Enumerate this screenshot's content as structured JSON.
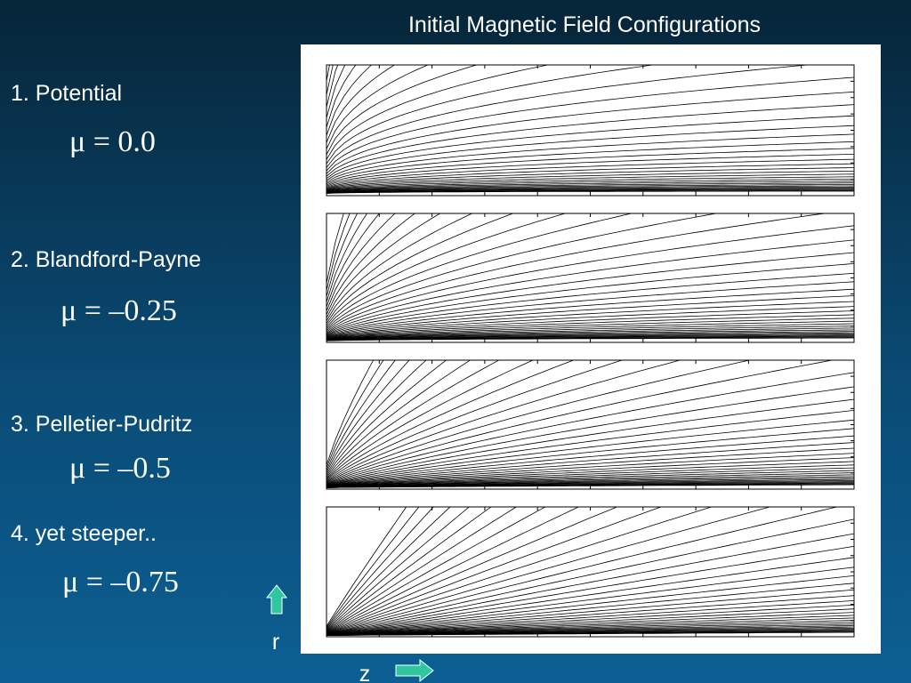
{
  "title": "Initial Magnetic Field Configurations",
  "items": [
    {
      "label": "1. Potential",
      "equation": "μ = 0.0"
    },
    {
      "label": "2. Blandford-Payne",
      "equation": "μ = –0.25"
    },
    {
      "label": "3. Pelletier-Pudritz",
      "equation": "μ = –0.5"
    },
    {
      "label": "4. yet steeper..",
      "equation": "μ = –0.75"
    }
  ],
  "axes": {
    "r": "r",
    "z": "z"
  }
}
